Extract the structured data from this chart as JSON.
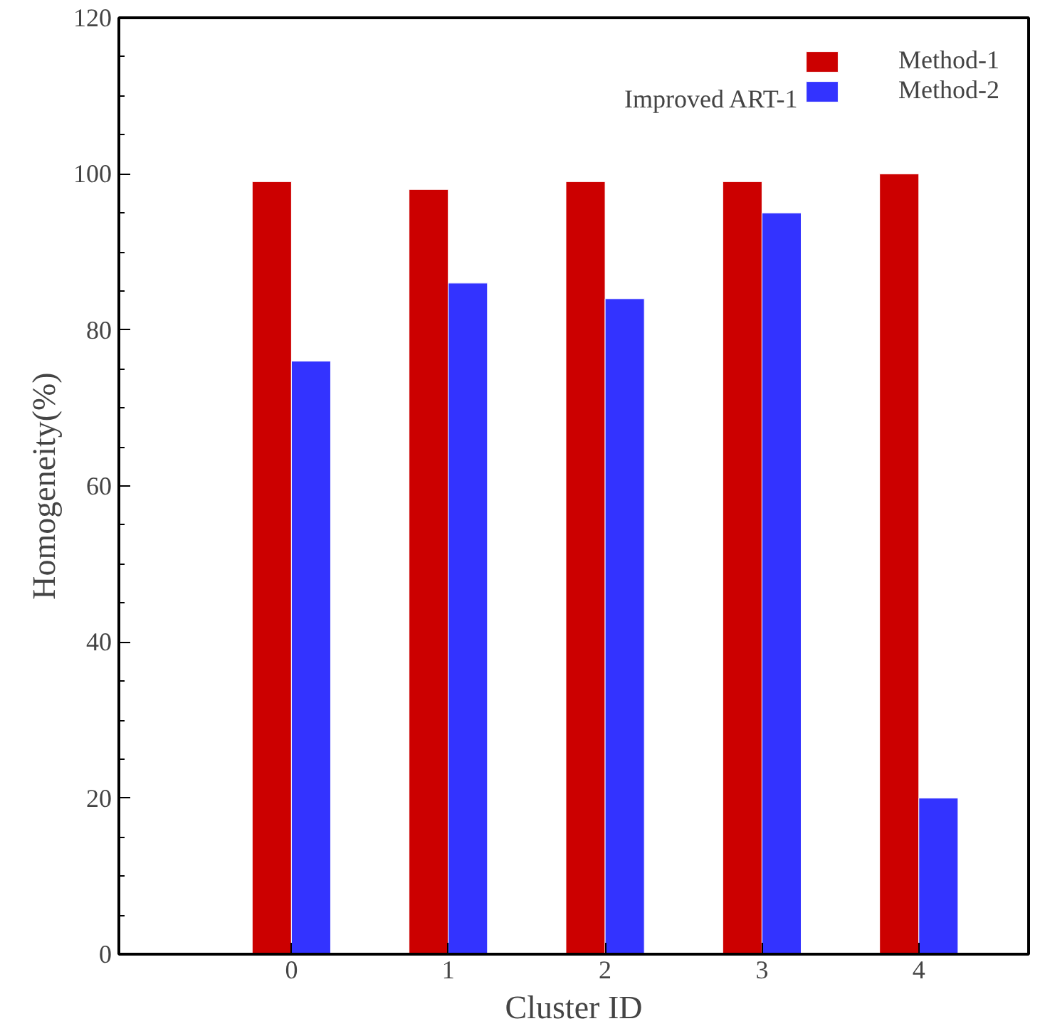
{
  "chart_data": {
    "type": "bar",
    "xlabel": "Cluster ID",
    "ylabel": "Homogeneity(%)",
    "legend_title": "Improved ART-1",
    "x": [
      0,
      1,
      2,
      3,
      4
    ],
    "xlim": [
      -1.1,
      4.7
    ],
    "xticks": [
      0,
      1,
      2,
      3,
      4
    ],
    "ylim": [
      0,
      120
    ],
    "yticks": [
      0,
      20,
      40,
      60,
      80,
      100,
      120
    ],
    "series": [
      {
        "name": "Method-1",
        "color": "#cc0000",
        "values": [
          99,
          98,
          99,
          99,
          100
        ]
      },
      {
        "name": "Method-2",
        "color": "#3333ff",
        "values": [
          76,
          86,
          84,
          95,
          20
        ]
      }
    ],
    "legend": "top right",
    "grid": false
  }
}
